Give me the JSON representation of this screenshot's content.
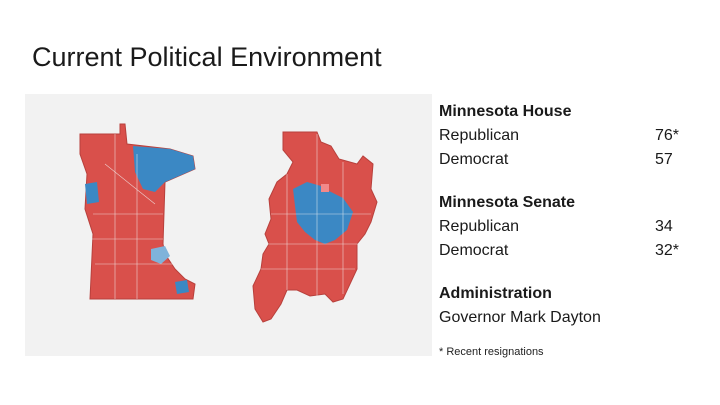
{
  "slide": {
    "title": "Current Political Environment"
  },
  "map": {
    "colors": {
      "republican": "#d9504b",
      "democrat": "#3b88c4",
      "light": "#f2898a",
      "background": "#f2f2f2"
    }
  },
  "house": {
    "title": "Minnesota House",
    "rows": [
      {
        "label": "Republican",
        "value": "76*"
      },
      {
        "label": "Democrat",
        "value": "57"
      }
    ]
  },
  "senate": {
    "title": "Minnesota Senate",
    "rows": [
      {
        "label": "Republican",
        "value": "34"
      },
      {
        "label": "Democrat",
        "value": "32*"
      }
    ]
  },
  "administration": {
    "title": "Administration",
    "governor": "Governor Mark Dayton"
  },
  "footnote": "* Recent resignations"
}
